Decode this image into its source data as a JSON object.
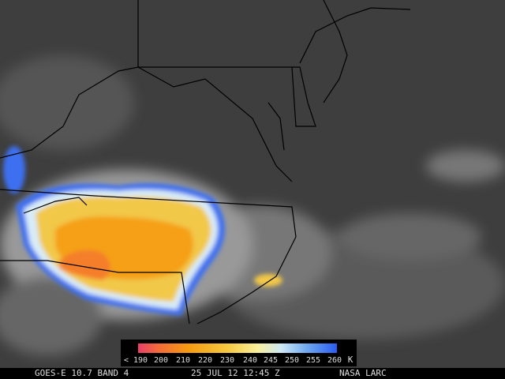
{
  "legend": {
    "labels": [
      "< 190",
      "200",
      "210",
      "220",
      "230",
      "240",
      "245",
      "250",
      "255",
      "260"
    ],
    "unit": "K"
  },
  "footer": {
    "satellite": "GOES-E 10.7 BAND 4",
    "datetime": "25 JUL 12 12:45 Z",
    "source": "NASA LARC"
  }
}
